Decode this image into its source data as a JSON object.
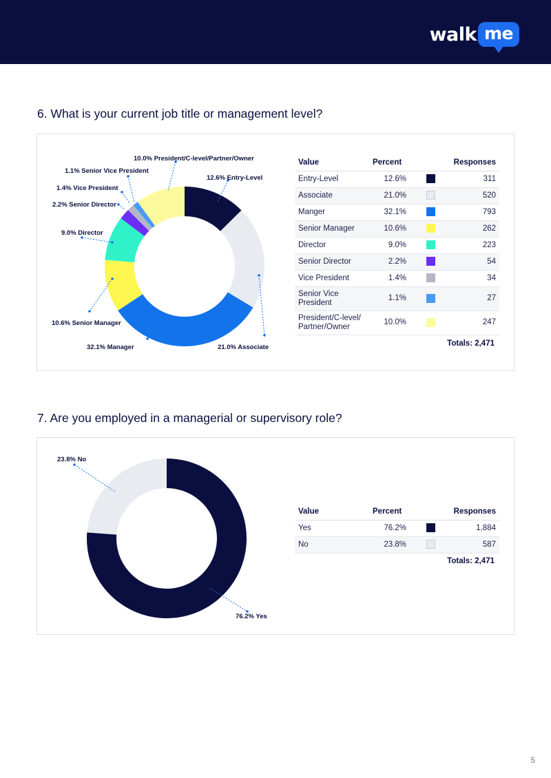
{
  "brand": {
    "logo_walk": "walk",
    "logo_me": "me"
  },
  "colors": {
    "header_bg": "#0b0f3f",
    "logo_accent": "#1e6cf0"
  },
  "page_number": "5",
  "q6": {
    "title": "6. What is your current job title or management level?",
    "table": {
      "headers": [
        "Value",
        "Percent",
        "",
        "Responses"
      ],
      "rows": [
        {
          "value": "Entry-Level",
          "percent": "12.6%",
          "responses": "311",
          "color": "#0b0f3f"
        },
        {
          "value": "Associate",
          "percent": "21.0%",
          "responses": "520",
          "color": "#e8ebf0"
        },
        {
          "value": "Manger",
          "percent": "32.1%",
          "responses": "793",
          "color": "#1273eb"
        },
        {
          "value": "Senior Manager",
          "percent": "10.6%",
          "responses": "262",
          "color": "#fdf750"
        },
        {
          "value": "Director",
          "percent": "9.0%",
          "responses": "223",
          "color": "#2ff2c8"
        },
        {
          "value": "Senior Director",
          "percent": "2.2%",
          "responses": "54",
          "color": "#6b2ef5"
        },
        {
          "value": "Vice President",
          "percent": "1.4%",
          "responses": "34",
          "color": "#b3b7c5"
        },
        {
          "value": "Senior Vice President",
          "percent": "1.1%",
          "responses": "27",
          "color": "#4a9af5"
        },
        {
          "value": "President/C-level/ Partner/Owner",
          "percent": "10.0%",
          "responses": "247",
          "color": "#fdfa9e"
        }
      ],
      "total": "Totals: 2,471"
    },
    "chart_labels": {
      "entry": "12.6% Entry-Level",
      "associate": "21.0% Associate",
      "manager": "32.1% Manager",
      "senior_manager": "10.6% Senior Manager",
      "director": "9.0% Director",
      "senior_director": "2.2% Senior Director",
      "vice_president": "1.4% Vice President",
      "svp": "1.1% Senior Vice President",
      "president": "10.0% President/C-level/Partner/Owner"
    }
  },
  "q7": {
    "title": "7. Are you employed in a managerial or supervisory role?",
    "table": {
      "headers": [
        "Value",
        "Percent",
        "",
        "Responses"
      ],
      "rows": [
        {
          "value": "Yes",
          "percent": "76.2%",
          "responses": "1,884",
          "color": "#0b0f3f"
        },
        {
          "value": "No",
          "percent": "23.8%",
          "responses": "587",
          "color": "#e8ebf0"
        }
      ],
      "total": "Totals: 2,471"
    },
    "chart_labels": {
      "yes": "76.2% Yes",
      "no": "23.8% No"
    }
  },
  "chart_data": [
    {
      "type": "pie",
      "title": "6. What is your current job title or management level?",
      "categories": [
        "Entry-Level",
        "Associate",
        "Manager",
        "Senior Manager",
        "Director",
        "Senior Director",
        "Vice President",
        "Senior Vice President",
        "President/C-level/Partner/Owner"
      ],
      "values": [
        12.6,
        21.0,
        32.1,
        10.6,
        9.0,
        2.2,
        1.4,
        1.1,
        10.0
      ],
      "responses": [
        311,
        520,
        793,
        262,
        223,
        54,
        34,
        27,
        247
      ],
      "colors": [
        "#0b0f3f",
        "#e8ebf0",
        "#1273eb",
        "#fdf750",
        "#2ff2c8",
        "#6b2ef5",
        "#b3b7c5",
        "#4a9af5",
        "#fdfa9e"
      ],
      "donut": true
    },
    {
      "type": "pie",
      "title": "7. Are you employed in a managerial or supervisory role?",
      "categories": [
        "Yes",
        "No"
      ],
      "values": [
        76.2,
        23.8
      ],
      "responses": [
        1884,
        587
      ],
      "colors": [
        "#0b0f3f",
        "#e8ebf0"
      ],
      "donut": true
    }
  ]
}
